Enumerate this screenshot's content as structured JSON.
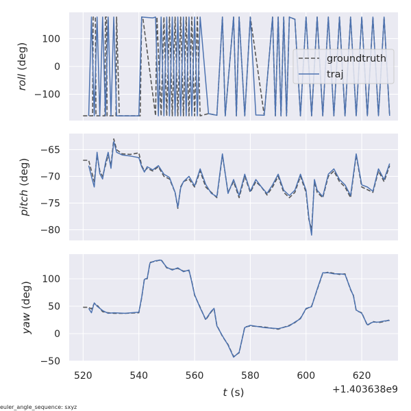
{
  "chart_data": [
    {
      "type": "line",
      "xlabel": "t (s)",
      "xlabel_italic": "t",
      "xlabel_rest": " (s)",
      "ylabel_italic": "roll",
      "ylabel_rest": " (deg)",
      "x_offset_label": "+1.403638e9",
      "xlim": [
        515,
        633
      ],
      "ylim": [
        -195,
        195
      ],
      "yticks": [
        100,
        0,
        -100
      ],
      "ytick_labels": [
        "100",
        "0",
        "−100"
      ],
      "legend": {
        "placement": "center-right",
        "entries": [
          "groundtruth",
          "traj"
        ]
      },
      "series": [
        {
          "name": "groundtruth",
          "color": "#555555",
          "style": "dashed",
          "x": [
            520,
            522,
            523.4,
            523.6,
            524.4,
            524.6,
            527.8,
            528,
            528.4,
            528.6,
            531.8,
            532,
            533,
            540,
            540.5,
            541,
            541.4,
            546,
            546.5,
            548,
            549,
            550,
            551,
            552,
            553,
            554,
            555,
            556,
            557,
            558,
            559,
            560,
            561,
            562,
            565,
            568,
            570,
            571,
            574,
            575,
            576,
            578,
            580,
            585,
            588,
            589,
            590,
            591,
            592,
            593,
            594,
            596,
            598,
            600,
            602,
            604,
            606,
            608,
            610,
            612,
            614,
            616,
            618,
            620,
            622,
            624,
            626,
            628,
            630
          ],
          "y": [
            -178,
            -178,
            -178,
            178,
            178,
            -178,
            -178,
            178,
            178,
            -178,
            -178,
            178,
            -178,
            -178,
            -178,
            178,
            178,
            -178,
            178,
            -178,
            178,
            -178,
            178,
            -178,
            178,
            -178,
            178,
            -178,
            178,
            -178,
            178,
            -178,
            178,
            -178,
            -170,
            -176,
            178,
            -178,
            178,
            -178,
            178,
            -178,
            178,
            -176,
            178,
            -178,
            178,
            -178,
            178,
            -178,
            178,
            170,
            -178,
            178,
            -178,
            178,
            -178,
            178,
            -178,
            178,
            -178,
            178,
            -178,
            178,
            -178,
            178,
            -178,
            178,
            -178
          ]
        },
        {
          "name": "traj",
          "color": "#4c72b0",
          "style": "solid",
          "x": [
            522,
            523,
            524,
            525,
            526,
            527,
            528,
            529,
            530,
            531,
            532,
            533,
            537,
            540,
            541,
            545,
            546,
            547,
            548,
            549,
            550,
            551,
            552,
            553,
            554,
            555,
            556,
            557,
            558,
            559,
            560,
            561,
            562,
            565,
            568,
            570,
            571,
            574,
            575,
            576,
            578,
            580,
            582,
            585,
            588,
            589,
            590,
            591,
            592,
            593,
            594,
            596,
            598,
            600,
            602,
            604,
            606,
            608,
            610,
            612,
            614,
            616,
            618,
            620,
            622,
            624,
            626,
            628,
            630
          ],
          "y": [
            -178,
            178,
            -178,
            178,
            -178,
            178,
            -178,
            178,
            -178,
            178,
            -178,
            -178,
            -178,
            -178,
            178,
            175,
            178,
            -178,
            178,
            -178,
            178,
            -178,
            178,
            -178,
            178,
            -178,
            178,
            -178,
            178,
            -178,
            178,
            -178,
            178,
            -170,
            -176,
            178,
            -178,
            178,
            -178,
            178,
            -178,
            178,
            -175,
            -176,
            178,
            -178,
            178,
            -178,
            178,
            -178,
            178,
            170,
            -178,
            178,
            -178,
            178,
            -178,
            178,
            -178,
            178,
            -178,
            178,
            -178,
            178,
            -178,
            178,
            -178,
            178,
            -178
          ]
        }
      ]
    },
    {
      "type": "line",
      "xlabel": "t (s)",
      "ylabel_italic": "pitch",
      "ylabel_rest": " (deg)",
      "xlim": [
        515,
        633
      ],
      "ylim": [
        -82,
        -62
      ],
      "yticks": [
        -65,
        -70,
        -75,
        -80
      ],
      "ytick_labels": [
        "−65",
        "−70",
        "−75",
        "−80"
      ],
      "series": [
        {
          "name": "groundtruth",
          "color": "#555555",
          "style": "dashed",
          "x": [
            520,
            522,
            523,
            524,
            525,
            526,
            527,
            528,
            529,
            530,
            531,
            532,
            534,
            537,
            540,
            541,
            542,
            543,
            545,
            547,
            549,
            551,
            553,
            554,
            555,
            556,
            558,
            560,
            562,
            564,
            566,
            568,
            570,
            572,
            574,
            576,
            578,
            580,
            582,
            584,
            586,
            588,
            590,
            592,
            594,
            596,
            598,
            600,
            601,
            602,
            603,
            604,
            606,
            608,
            610,
            612,
            614,
            616,
            618,
            620,
            622,
            624,
            626,
            628,
            630
          ],
          "y": [
            -67,
            -67,
            -69,
            -71,
            -66,
            -69,
            -70,
            -68,
            -66,
            -68,
            -63,
            -65,
            -65.8,
            -65.9,
            -65.6,
            -68,
            -69,
            -68.5,
            -69,
            -68.2,
            -70,
            -70.5,
            -73,
            -76,
            -72,
            -71,
            -70.5,
            -72,
            -69,
            -72,
            -73,
            -74,
            -66,
            -73,
            -71,
            -74,
            -70,
            -73,
            -71,
            -72,
            -73.5,
            -72,
            -70,
            -73,
            -74,
            -73,
            -70,
            -73,
            -78,
            -80,
            -71,
            -73,
            -74,
            -70,
            -69,
            -71,
            -72,
            -74,
            -66,
            -72,
            -72.5,
            -73,
            -69,
            -71,
            -68
          ]
        },
        {
          "name": "traj",
          "color": "#4c72b0",
          "style": "solid",
          "x": [
            522,
            523,
            524,
            525,
            526,
            527,
            528,
            529,
            530,
            531,
            532,
            534,
            537,
            540,
            541,
            542,
            543,
            545,
            547,
            549,
            551,
            553,
            554,
            555,
            556,
            558,
            560,
            562,
            564,
            566,
            568,
            570,
            572,
            574,
            576,
            578,
            580,
            582,
            584,
            586,
            588,
            590,
            592,
            594,
            596,
            598,
            600,
            601,
            602,
            603,
            604,
            606,
            608,
            610,
            612,
            614,
            616,
            618,
            620,
            622,
            624,
            626,
            628,
            630
          ],
          "y": [
            -68,
            -70,
            -72,
            -65.5,
            -69.5,
            -70.5,
            -67.5,
            -65.5,
            -68.5,
            -63.5,
            -65.5,
            -66,
            -66.2,
            -66.5,
            -68.2,
            -69.2,
            -68.2,
            -68.8,
            -68,
            -69.6,
            -70.2,
            -73,
            -75.8,
            -72.2,
            -71,
            -70,
            -71.8,
            -68.6,
            -71.5,
            -73.2,
            -73.8,
            -65.8,
            -73.2,
            -70.6,
            -73.6,
            -69.6,
            -72.8,
            -70.6,
            -72,
            -73.2,
            -71.6,
            -69.6,
            -72.6,
            -73.6,
            -72.6,
            -69.6,
            -72.6,
            -77.6,
            -81,
            -70.6,
            -72.6,
            -73.8,
            -69.6,
            -68.6,
            -70.6,
            -71.6,
            -73.6,
            -65.8,
            -71.6,
            -72,
            -72.8,
            -68.6,
            -70.6,
            -67.6
          ]
        }
      ]
    },
    {
      "type": "line",
      "xlabel": "t (s)",
      "xlabel_italic": "t",
      "xlabel_rest": " (s)",
      "ylabel_italic": "yaw",
      "ylabel_rest": " (deg)",
      "x_offset_label": "+1.403638e9",
      "xlim": [
        515,
        633
      ],
      "ylim": [
        -50,
        145
      ],
      "yticks": [
        100,
        50,
        0,
        -50
      ],
      "ytick_labels": [
        "100",
        "50",
        "0",
        "−50"
      ],
      "xticks": [
        520,
        540,
        560,
        580,
        600,
        620
      ],
      "xtick_labels": [
        "520",
        "540",
        "560",
        "580",
        "600",
        "620"
      ],
      "series": [
        {
          "name": "groundtruth",
          "color": "#555555",
          "style": "dashed",
          "x": [
            520,
            522,
            523,
            524,
            525,
            527,
            529,
            531,
            535,
            540,
            541,
            542,
            543,
            544,
            546,
            548,
            550,
            552,
            554,
            556,
            558,
            559,
            560,
            562,
            564,
            566,
            567,
            568,
            570,
            572,
            574,
            576,
            578,
            580,
            585,
            590,
            594,
            596,
            598,
            600,
            602,
            604,
            606,
            608,
            610,
            612,
            614,
            616,
            617,
            618,
            620,
            622,
            624,
            626,
            628,
            630
          ],
          "y": [
            48,
            48,
            45,
            55,
            52,
            40,
            38,
            37,
            37,
            38,
            65,
            100,
            100,
            130,
            132,
            135,
            120,
            117,
            119,
            114,
            115,
            95,
            70,
            48,
            25,
            40,
            45,
            15,
            -5,
            -20,
            -42,
            -35,
            12,
            14,
            12,
            8,
            15,
            20,
            28,
            45,
            50,
            80,
            110,
            112,
            110,
            108,
            109,
            80,
            70,
            42,
            38,
            15,
            22,
            20,
            22,
            25
          ]
        },
        {
          "name": "traj",
          "color": "#4c72b0",
          "style": "solid",
          "x": [
            522,
            523,
            524,
            525,
            527,
            529,
            531,
            535,
            540,
            541,
            542,
            543,
            544,
            546,
            548,
            550,
            552,
            554,
            556,
            558,
            559,
            560,
            562,
            564,
            566,
            567,
            568,
            570,
            572,
            574,
            576,
            578,
            580,
            585,
            590,
            594,
            596,
            598,
            600,
            602,
            604,
            606,
            608,
            610,
            612,
            614,
            616,
            617,
            618,
            620,
            622,
            624,
            626,
            628,
            630
          ],
          "y": [
            46,
            38,
            56,
            50,
            42,
            37,
            38,
            37,
            39,
            66,
            99,
            101,
            129,
            133,
            134,
            121,
            116,
            120,
            113,
            116,
            94,
            71,
            47,
            26,
            41,
            46,
            14,
            -4,
            -21,
            -43,
            -34,
            11,
            15,
            11,
            9,
            14,
            21,
            27,
            46,
            49,
            81,
            111,
            111,
            109,
            109,
            108,
            81,
            69,
            43,
            37,
            16,
            21,
            21,
            23,
            24
          ]
        }
      ]
    }
  ],
  "footer_text": "euler_angle_sequence: sxyz",
  "colors": {
    "panel_bg": "#eaeaf2",
    "grid": "#ffffff",
    "text": "#262626",
    "groundtruth": "#555555",
    "traj": "#4c72b0"
  }
}
